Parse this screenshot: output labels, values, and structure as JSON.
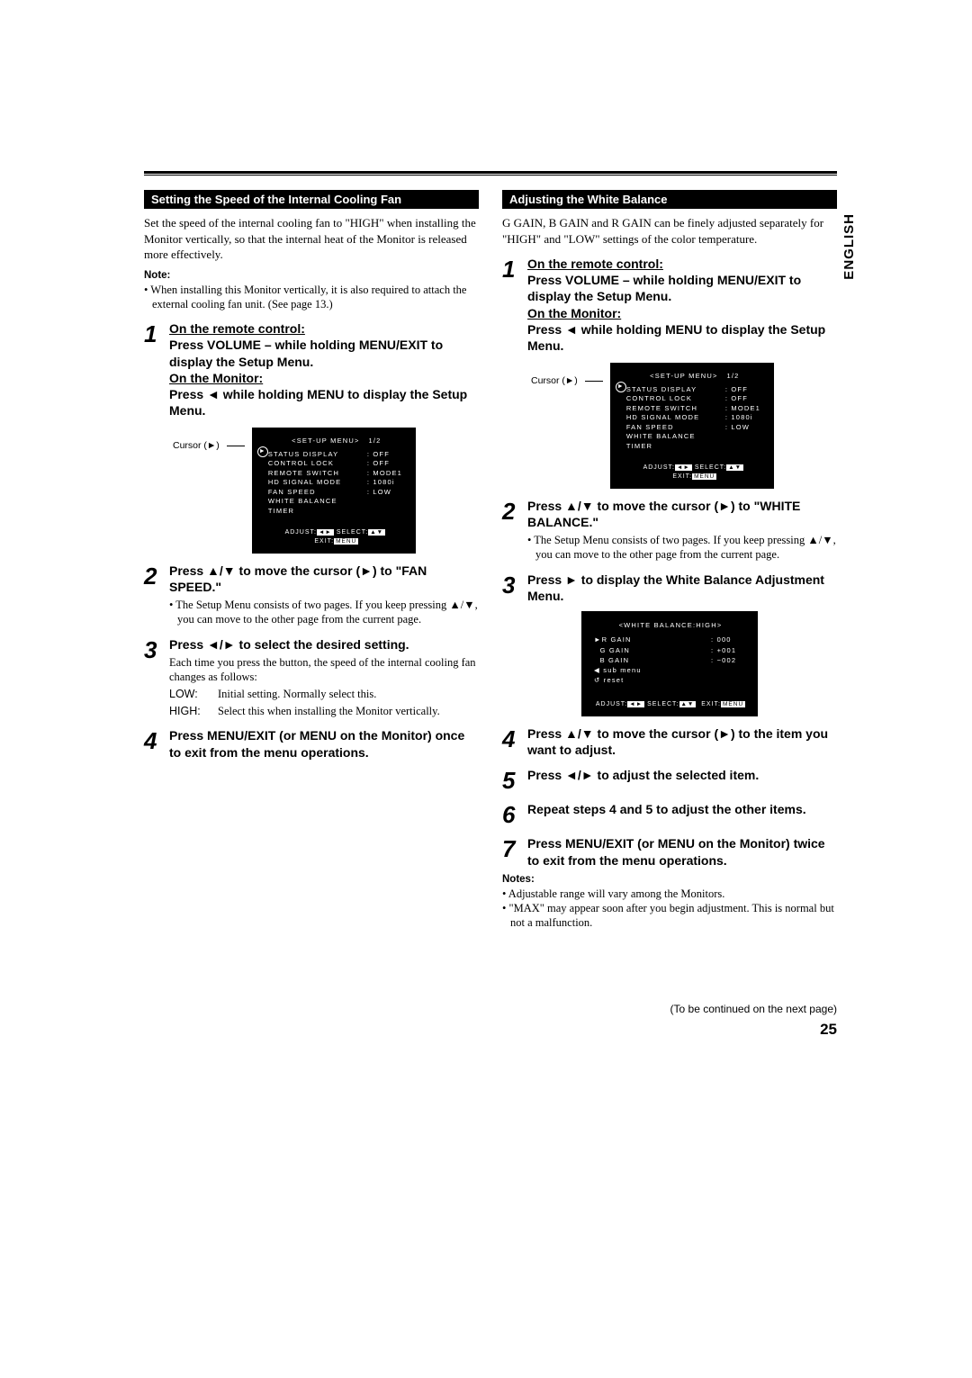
{
  "lang_tab": "ENGLISH",
  "page_number": "25",
  "continued": "(To be continued on the next page)",
  "left": {
    "bar": "Setting the Speed of the Internal Cooling Fan",
    "intro": "Set the speed of the internal cooling fan to \"HIGH\" when installing the Monitor vertically, so that the internal heat of the Monitor is released more effectively.",
    "note_head": "Note:",
    "note_body": "• When installing this Monitor vertically, it is also required to attach the external cooling fan unit. (See page 13.)",
    "s1": {
      "num": "1",
      "l1": "On the remote control:",
      "l2": "Press VOLUME – while holding MENU/EXIT to display the Setup Menu.",
      "l3": "On the Monitor:",
      "l4": "Press ◄ while holding MENU to display the Setup Menu."
    },
    "cursor_label": "Cursor (►)",
    "osd": {
      "hdr_l": "<SET-UP MENU>",
      "hdr_r": "1/2",
      "rows": [
        {
          "a": "STATUS DISPLAY",
          "b": ": OFF"
        },
        {
          "a": "CONTROL LOCK",
          "b": ": OFF"
        },
        {
          "a": "REMOTE SWITCH",
          "b": ": MODE1"
        },
        {
          "a": "HD SIGNAL MODE",
          "b": ": 1080i"
        },
        {
          "a": "FAN SPEED",
          "b": ": LOW"
        },
        {
          "a": "WHITE BALANCE",
          "b": ""
        },
        {
          "a": "TIMER",
          "b": ""
        }
      ],
      "ft_a": "ADJUST:",
      "ft_b": "◄►",
      "ft_c": "SELECT:",
      "ft_d": "▲▼",
      "ft_e": "EXIT:",
      "ft_f": "MENU"
    },
    "s2": {
      "num": "2",
      "title": "Press ▲/▼ to move the cursor (►) to \"FAN SPEED.\"",
      "bullet": "• The Setup Menu consists of two pages. If you keep pressing ▲/▼, you can move to the other page from the current page."
    },
    "s3": {
      "num": "3",
      "title": "Press ◄/► to select the desired setting.",
      "desc": "Each time you press the button, the speed of the internal cooling fan changes as follows:",
      "row1k": "LOW:",
      "row1v": "Initial setting. Normally select this.",
      "row2k": "HIGH:",
      "row2v": "Select this when installing the Monitor vertically."
    },
    "s4": {
      "num": "4",
      "title": "Press MENU/EXIT (or MENU on the Monitor) once to exit from the menu operations."
    }
  },
  "right": {
    "bar": "Adjusting the White Balance",
    "intro": "G GAIN, B GAIN and R GAIN can be finely adjusted separately for \"HIGH\" and \"LOW\" settings of the color temperature.",
    "s1": {
      "num": "1",
      "l1": "On the remote control:",
      "l2": "Press VOLUME – while holding MENU/EXIT to display the Setup Menu.",
      "l3": "On the Monitor:",
      "l4": "Press ◄ while holding MENU to display the Setup Menu."
    },
    "cursor_label": "Cursor (►)",
    "s2": {
      "num": "2",
      "title": "Press ▲/▼ to move the cursor (►) to \"WHITE BALANCE.\"",
      "bullet": "• The Setup Menu consists of two pages. If you keep pressing ▲/▼, you can move to the other page from the current page."
    },
    "s3": {
      "num": "3",
      "title": "Press ► to display the White Balance Adjustment Menu."
    },
    "osd2": {
      "hdr": "<WHITE BALANCE:HIGH>",
      "rows": [
        {
          "a": "►R GAIN",
          "b": ":  000"
        },
        {
          "a": "  G GAIN",
          "b": ": +001"
        },
        {
          "a": "  B GAIN",
          "b": ": −002"
        },
        {
          "a": "◀ sub menu",
          "b": ""
        },
        {
          "a": "↺ reset",
          "b": ""
        }
      ],
      "ft_a": "ADJUST:",
      "ft_b": "◄►",
      "ft_c": "SELECT:",
      "ft_d": "▲▼",
      "ft_e": "EXIT:",
      "ft_f": "MENU"
    },
    "s4": {
      "num": "4",
      "title": "Press ▲/▼ to move the cursor (►) to the item you want to adjust."
    },
    "s5": {
      "num": "5",
      "title": "Press ◄/► to adjust the selected item."
    },
    "s6": {
      "num": "6",
      "title": "Repeat steps 4 and 5 to adjust the other items."
    },
    "s7": {
      "num": "7",
      "title": "Press MENU/EXIT (or MENU on the Monitor) twice to exit from the menu operations."
    },
    "notes_head": "Notes:",
    "note1": "• Adjustable range will vary among the Monitors.",
    "note2": "• \"MAX\" may appear soon after you begin adjustment. This is normal but not a malfunction."
  }
}
